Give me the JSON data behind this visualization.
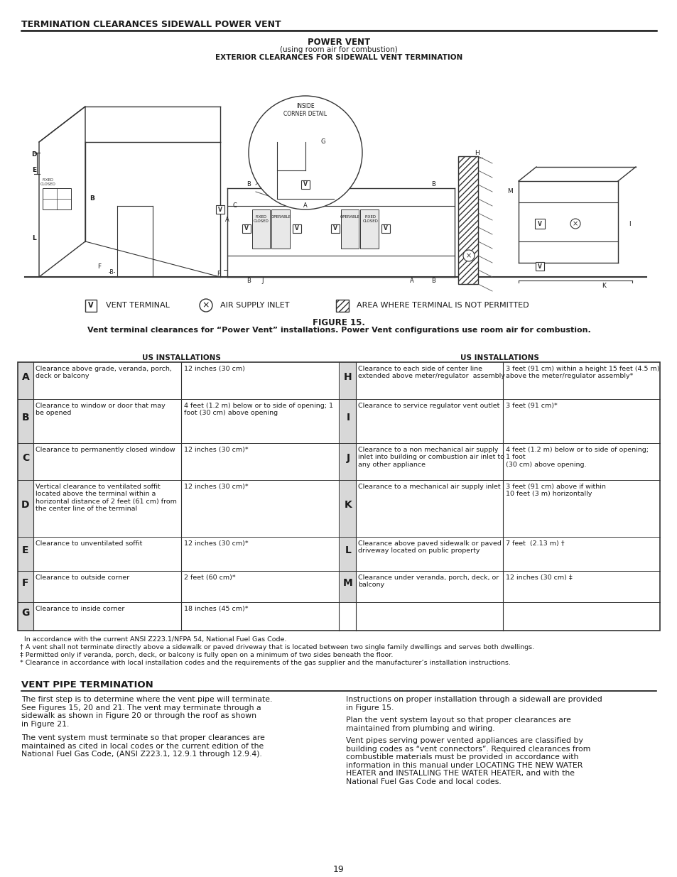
{
  "title": "TERMINATION CLEARANCES SIDEWALL POWER VENT",
  "subtitle1": "POWER VENT",
  "subtitle2": "(using room air for combustion)",
  "subtitle3": "EXTERIOR CLEARANCES FOR SIDEWALL VENT TERMINATION",
  "figure_label": "FIGURE 15.",
  "figure_caption": "Vent terminal clearances for “Power Vent” installations. Power Vent configurations use room air for combustion.",
  "col_header": "US INSTALLATIONS",
  "rows_left": [
    [
      "A",
      "Clearance above grade, veranda, porch,\ndeck or balcony",
      "12 inches (30 cm)"
    ],
    [
      "B",
      "Clearance to window or door that may\nbe opened",
      "4 feet (1.2 m) below or to side of opening; 1\nfoot (30 cm) above opening"
    ],
    [
      "C",
      "Clearance to permanently closed window",
      "12 inches (30 cm)*"
    ],
    [
      "D",
      "Vertical clearance to ventilated soffit\nlocated above the terminal within a\nhorizontal distance of 2 feet (61 cm) from\nthe center line of the terminal",
      "12 inches (30 cm)*"
    ],
    [
      "E",
      "Clearance to unventilated soffit",
      "12 inches (30 cm)*"
    ],
    [
      "F",
      "Clearance to outside corner",
      "2 feet (60 cm)*"
    ],
    [
      "G",
      "Clearance to inside corner",
      "18 inches (45 cm)*"
    ]
  ],
  "rows_right": [
    [
      "H",
      "Clearance to each side of center line\nextended above meter/regulator  assembly",
      "3 feet (91 cm) within a height 15 feet (4.5 m)\nabove the meter/regulator assembly*"
    ],
    [
      "I",
      "Clearance to service regulator vent outlet",
      "3 feet (91 cm)*"
    ],
    [
      "J",
      "Clearance to a non mechanical air supply\ninlet into building or combustion air inlet to\nany other appliance",
      "4 feet (1.2 m) below or to side of opening;\n1 foot\n(30 cm) above opening."
    ],
    [
      "K",
      "Clearance to a mechanical air supply inlet",
      "3 feet (91 cm) above if within\n10 feet (3 m) horizontally"
    ],
    [
      "L",
      "Clearance above paved sidewalk or paved\ndriveway located on public property",
      "7 feet  (2.13 m) †"
    ],
    [
      "M",
      "Clearance under veranda, porch, deck, or\nbalcony",
      "12 inches (30 cm) ‡"
    ],
    [
      "",
      "",
      ""
    ]
  ],
  "footnotes": [
    "  In accordance with the current ANSI Z223.1/NFPA 54, National Fuel Gas Code.",
    "† A vent shall not terminate directly above a sidewalk or paved driveway that is located between two single family dwellings and serves both dwellings.",
    "‡ Permitted only if veranda, porch, deck, or balcony is fully open on a minimum of two sides beneath the floor.",
    "* Clearance in accordance with local installation codes and the requirements of the gas supplier and the manufacturer’s installation instructions."
  ],
  "vent_pipe_title": "VENT PIPE TERMINATION",
  "vent_pipe_para1": "The first step is to determine where the vent pipe will terminate.\nSee Figures 15, 20 and 21. The vent may terminate through a\nsidewalk as shown in Figure 20 or through the roof as shown\nin Figure 21.",
  "vent_pipe_para2": "The vent system must terminate so that proper clearances are\nmaintained as cited in local codes or the current edition of the\nNational Fuel Gas Code, (ANSI Z223.1, 12.9.1 through 12.9.4).",
  "vent_pipe_para3": "Instructions on proper installation through a sidewall are provided\nin Figure 15.",
  "vent_pipe_para4": "Plan the vent system layout so that proper clearances are\nmaintained from plumbing and wiring.",
  "vent_pipe_para5": "Vent pipes serving power vented appliances are classified by\nbuilding codes as “vent connectors”. Required clearances from\ncombustible materials must be provided in accordance with\ninformation in this manual under LOCATING THE NEW WATER\nHEATER and INSTALLING THE WATER HEATER, and with the\nNational Fuel Gas Code and local codes.",
  "page_number": "19",
  "bg_color": "#ffffff",
  "text_color": "#1a1a1a",
  "line_color": "#333333"
}
